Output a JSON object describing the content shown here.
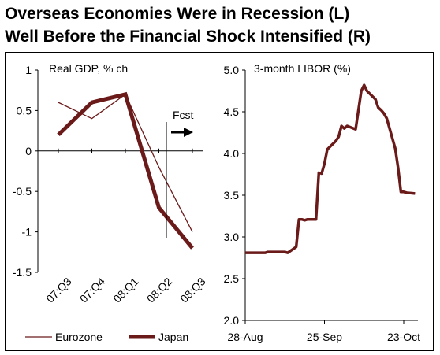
{
  "title_line1": "Overseas Economies Were in Recession (L)",
  "title_line2": "Well Before the Financial Shock Intensified (R)",
  "chart_data": [
    {
      "type": "line",
      "title": "Real GDP, % ch",
      "categories": [
        "07:Q3",
        "07:Q4",
        "08:Q1",
        "08:Q2",
        "08:Q3"
      ],
      "ylim": [
        -1.5,
        1
      ],
      "yticks": [
        "1",
        "0.5",
        "0",
        "-0.5",
        "-1",
        "-1.5"
      ],
      "forecast_label": "Fcst",
      "series": [
        {
          "name": "Eurozone",
          "values": [
            0.6,
            0.4,
            0.7,
            -0.2,
            -1.0
          ],
          "color": "#6b1a1a",
          "style": "thin"
        },
        {
          "name": "Japan",
          "values": [
            0.2,
            0.6,
            0.7,
            -0.7,
            -1.2
          ],
          "color": "#6b1a1a",
          "style": "thick"
        }
      ]
    },
    {
      "type": "line",
      "title": "3-month LIBOR (%)",
      "ylim": [
        2.0,
        5.0
      ],
      "yticks": [
        "5.0",
        "4.5",
        "4.0",
        "3.5",
        "3.0",
        "2.5",
        "2.0"
      ],
      "xticks": [
        "28-Aug",
        "25-Sep",
        "23-Oct"
      ],
      "x_dates": [
        "2008-08-28",
        "2008-08-29",
        "2008-09-01",
        "2008-09-02",
        "2008-09-03",
        "2008-09-04",
        "2008-09-05",
        "2008-09-08",
        "2008-09-09",
        "2008-09-10",
        "2008-09-11",
        "2008-09-12",
        "2008-09-15",
        "2008-09-16",
        "2008-09-17",
        "2008-09-18",
        "2008-09-19",
        "2008-09-22",
        "2008-09-23",
        "2008-09-24",
        "2008-09-25",
        "2008-09-26",
        "2008-09-29",
        "2008-09-30",
        "2008-10-01",
        "2008-10-02",
        "2008-10-03",
        "2008-10-06",
        "2008-10-07",
        "2008-10-08",
        "2008-10-09",
        "2008-10-10",
        "2008-10-13",
        "2008-10-14",
        "2008-10-15",
        "2008-10-16",
        "2008-10-17",
        "2008-10-20",
        "2008-10-21",
        "2008-10-22",
        "2008-10-23",
        "2008-10-24",
        "2008-10-27"
      ],
      "series": [
        {
          "name": "",
          "color": "#6b1a1a",
          "values": [
            2.81,
            2.81,
            2.81,
            2.81,
            2.81,
            2.81,
            2.82,
            2.82,
            2.82,
            2.82,
            2.82,
            2.81,
            2.88,
            3.21,
            3.21,
            3.2,
            3.21,
            3.21,
            3.77,
            3.76,
            3.88,
            4.05,
            4.15,
            4.2,
            4.33,
            4.3,
            4.33,
            4.29,
            4.52,
            4.75,
            4.82,
            4.75,
            4.65,
            4.55,
            4.52,
            4.48,
            4.42,
            4.06,
            3.83,
            3.54,
            3.54,
            3.53,
            3.52
          ]
        }
      ]
    }
  ],
  "legend": [
    {
      "label": "Eurozone"
    },
    {
      "label": "Japan"
    }
  ]
}
